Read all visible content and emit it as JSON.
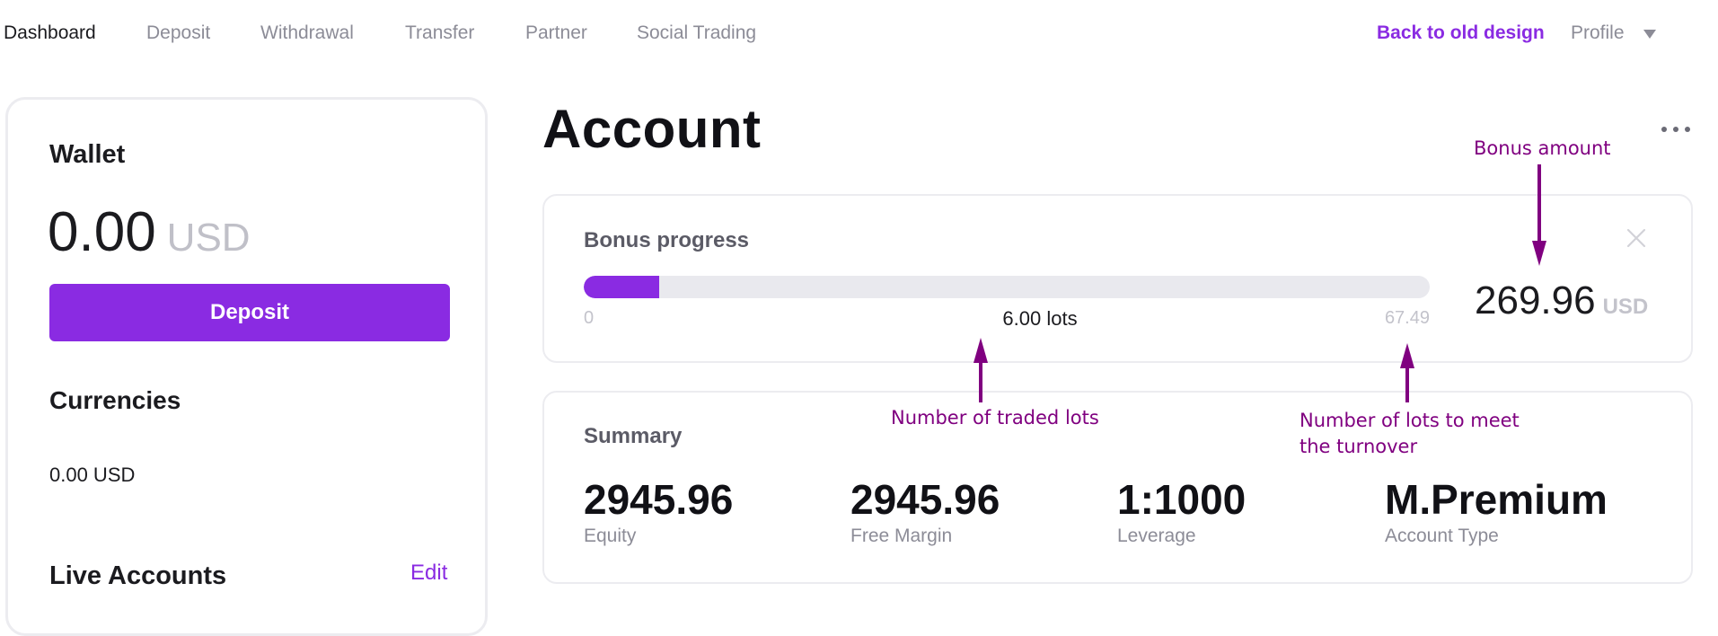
{
  "nav": {
    "items": [
      {
        "label": "Dashboard",
        "active": true
      },
      {
        "label": "Deposit",
        "active": false
      },
      {
        "label": "Withdrawal",
        "active": false
      },
      {
        "label": "Transfer",
        "active": false
      },
      {
        "label": "Partner",
        "active": false
      },
      {
        "label": "Social Trading",
        "active": false
      }
    ],
    "back_old_design": "Back to old design",
    "profile": "Profile",
    "profile_icon": "chevron-down-icon"
  },
  "wallet": {
    "title": "Wallet",
    "amount": "0.00",
    "currency": "USD",
    "deposit_button": "Deposit",
    "currencies_title": "Currencies",
    "currency_balance": "0.00 USD",
    "live_accounts_title": "Live Accounts",
    "edit_label": "Edit"
  },
  "account": {
    "title": "Account",
    "more_icon": "more-horizontal-icon"
  },
  "bonus": {
    "heading": "Bonus progress",
    "progress_min": "0",
    "progress_current": "6.00 lots",
    "progress_max": "67.49",
    "progress_fraction": 0.089,
    "amount": "269.96",
    "currency": "USD",
    "close_icon": "close-icon"
  },
  "summary": {
    "heading": "Summary",
    "stats": [
      {
        "value": "2945.96",
        "label": "Equity"
      },
      {
        "value": "2945.96",
        "label": "Free Margin"
      },
      {
        "value": "1:1000",
        "label": "Leverage"
      },
      {
        "value": "M.Premium",
        "label": "Account Type"
      }
    ]
  },
  "annotations": {
    "bonus_amount": "Bonus amount",
    "traded_lots": "Number of traded lots",
    "lots_turnover_line1": "Number of lots to meet",
    "lots_turnover_line2": "the turnover"
  },
  "colors": {
    "accent": "#8a2be2",
    "annotation": "#800080",
    "muted_text": "#8c8c97"
  }
}
